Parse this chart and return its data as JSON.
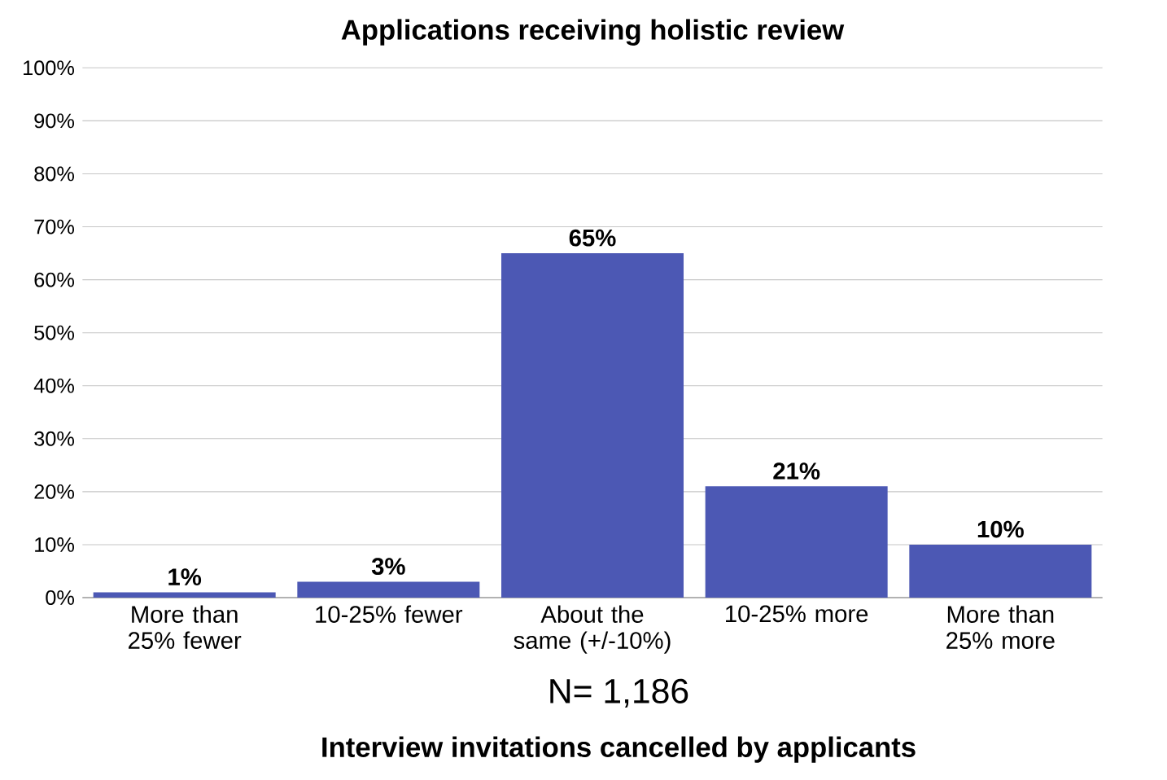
{
  "chart_data": {
    "type": "bar",
    "title": "Applications receiving holistic review",
    "categories": [
      "More than 25% fewer",
      "10-25% fewer",
      "About the same (+/-10%)",
      "10-25% more",
      "More than 25% more"
    ],
    "values": [
      1,
      3,
      65,
      21,
      10
    ],
    "value_labels": [
      "1%",
      "3%",
      "65%",
      "21%",
      "10%"
    ],
    "color": "#4c58b4",
    "ylim": [
      0,
      100
    ],
    "yticks": [
      {
        "value": 0,
        "label": "0%"
      },
      {
        "value": 10,
        "label": "10%"
      },
      {
        "value": 20,
        "label": "20%"
      },
      {
        "value": 30,
        "label": "30%"
      },
      {
        "value": 40,
        "label": "40%"
      },
      {
        "value": 50,
        "label": "50%"
      },
      {
        "value": 60,
        "label": "60%"
      },
      {
        "value": 70,
        "label": "70%"
      },
      {
        "value": 80,
        "label": "80%"
      },
      {
        "value": 90,
        "label": "90%"
      },
      {
        "value": 100,
        "label": "100%"
      }
    ],
    "grid": "y",
    "annotations": [
      "N= 1,186",
      "Interview invitations cancelled by applicants"
    ]
  }
}
